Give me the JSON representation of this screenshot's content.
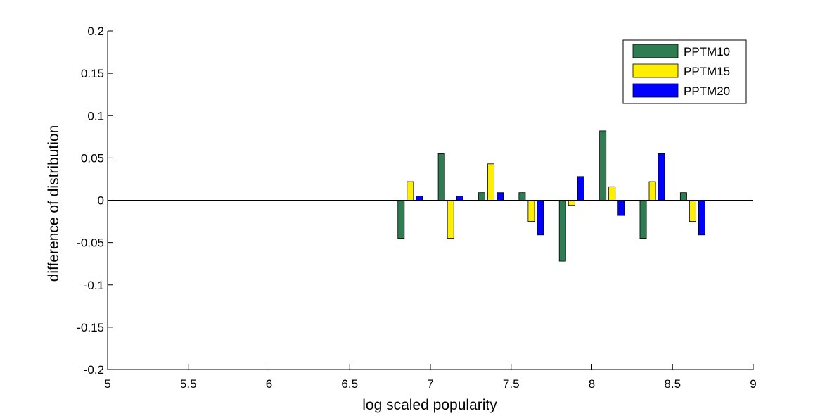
{
  "chart_data": {
    "type": "bar",
    "title": "",
    "xlabel": "log scaled popularity",
    "ylabel": "difference of distribution",
    "xlim": [
      5,
      9
    ],
    "ylim": [
      -0.2,
      0.2
    ],
    "x_ticks": [
      "5",
      "5.5",
      "6",
      "6.5",
      "7",
      "7.5",
      "8",
      "8.5",
      "9"
    ],
    "y_ticks": [
      "0.2",
      "0.15",
      "0.1",
      "0.05",
      "0",
      "-0.05",
      "-0.1",
      "-0.15",
      "-0.2"
    ],
    "grid": false,
    "legend_position": "top-right",
    "x": [
      6.875,
      7.125,
      7.375,
      7.625,
      7.875,
      8.125,
      8.375,
      8.625
    ],
    "series": [
      {
        "name": "PPTM10",
        "color": "#2e7d52",
        "values": [
          -0.045,
          0.055,
          0.009,
          0.009,
          -0.072,
          0.082,
          -0.045,
          0.009
        ]
      },
      {
        "name": "PPTM15",
        "color": "#ffee00",
        "values": [
          0.022,
          -0.045,
          0.043,
          -0.025,
          -0.006,
          0.016,
          0.022,
          -0.025
        ]
      },
      {
        "name": "PPTM20",
        "color": "#0000ff",
        "values": [
          0.005,
          0.005,
          0.009,
          -0.041,
          0.028,
          -0.018,
          0.055,
          -0.041
        ]
      }
    ]
  }
}
